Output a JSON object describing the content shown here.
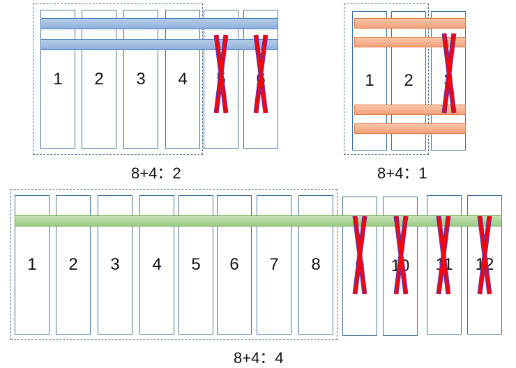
{
  "diagrams": [
    {
      "caption": "8+4：2",
      "columns": [
        {
          "label": "1",
          "excluded": false
        },
        {
          "label": "2",
          "excluded": false
        },
        {
          "label": "3",
          "excluded": false
        },
        {
          "label": "4",
          "excluded": false
        },
        {
          "label": "5",
          "excluded": true
        },
        {
          "label": "6",
          "excluded": true
        }
      ],
      "bar_color": "#8fb0dd",
      "bar_count": 2
    },
    {
      "caption": "8+4：1",
      "columns": [
        {
          "label": "1",
          "excluded": false
        },
        {
          "label": "2",
          "excluded": false
        },
        {
          "label": "3",
          "excluded": true
        }
      ],
      "bar_color": "#f3a27a",
      "bar_count": 4
    },
    {
      "caption": "8+4：4",
      "columns": [
        {
          "label": "1",
          "excluded": false
        },
        {
          "label": "2",
          "excluded": false
        },
        {
          "label": "3",
          "excluded": false
        },
        {
          "label": "4",
          "excluded": false
        },
        {
          "label": "5",
          "excluded": false
        },
        {
          "label": "6",
          "excluded": false
        },
        {
          "label": "7",
          "excluded": false
        },
        {
          "label": "8",
          "excluded": false
        },
        {
          "label": "9",
          "excluded": true
        },
        {
          "label": "10",
          "excluded": true
        },
        {
          "label": "11",
          "excluded": true
        },
        {
          "label": "12",
          "excluded": true
        }
      ],
      "bar_color": "#9ccb85",
      "bar_count": 1
    }
  ],
  "colors": {
    "column_border": "#41719c",
    "cross": "#ff0000",
    "cross_outline": "#7030a0"
  }
}
